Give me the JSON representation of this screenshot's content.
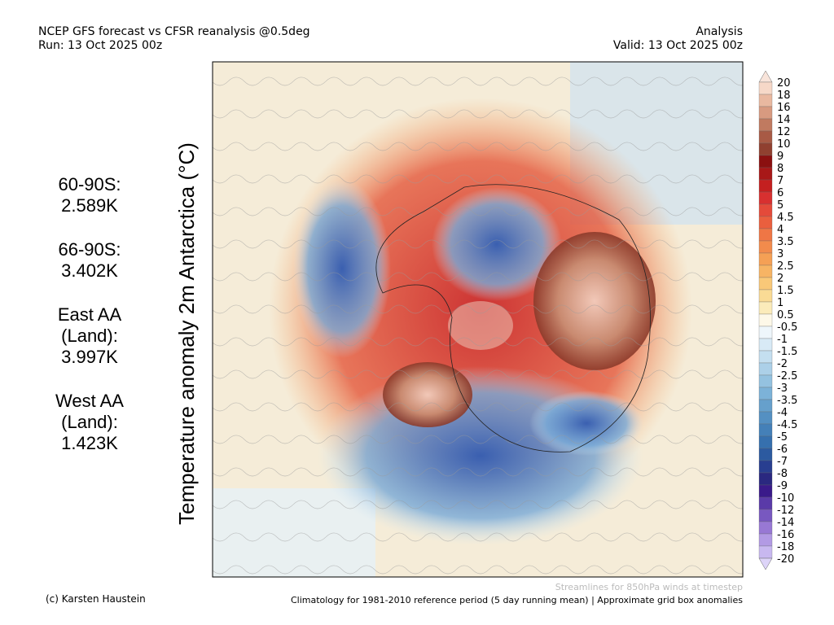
{
  "header": {
    "title": "NCEP GFS forecast vs CFSR reanalysis @0.5deg",
    "run": "Run: 13 Oct 2025 00z",
    "kind": "Analysis",
    "valid": "Valid: 13 Oct 2025 00z"
  },
  "axis_label": "Temperature anomaly 2m Antarctica (°C)",
  "stats": [
    {
      "region": [
        "60-90S:"
      ],
      "value": "2.589K"
    },
    {
      "region": [
        "66-90S:"
      ],
      "value": "3.402K"
    },
    {
      "region": [
        "East AA",
        "(Land):"
      ],
      "value": "3.997K"
    },
    {
      "region": [
        "West AA",
        "(Land):"
      ],
      "value": "1.423K"
    }
  ],
  "colorbar": {
    "labels": [
      20,
      18,
      16,
      14,
      12,
      10,
      9,
      8,
      7,
      6,
      5,
      4.5,
      4,
      3.5,
      3,
      2.5,
      2,
      1.5,
      1,
      0.5,
      -0.5,
      -1,
      -1.5,
      -2,
      -2.5,
      -3,
      -3.5,
      -4,
      -4.5,
      -5,
      -6,
      -7,
      -8,
      -9,
      -10,
      -12,
      -14,
      -16,
      -18,
      -20
    ]
  },
  "footer": {
    "credit": "(c) Karsten Haustein",
    "streamlines": "Streamlines for 850hPa winds at timestep",
    "climatology": "Climatology for 1981-2010 reference period (5 day running mean) | Approximate grid box anomalies"
  }
}
